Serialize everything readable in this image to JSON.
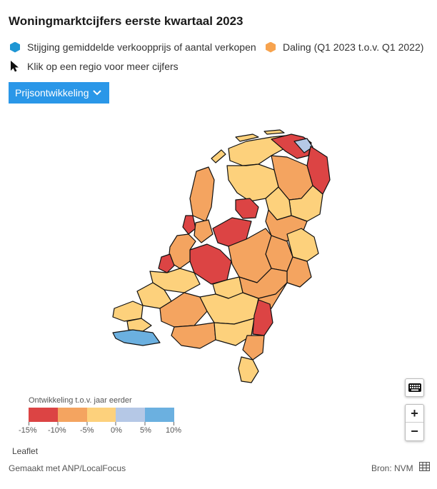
{
  "title": "Woningmarktcijfers eerste kwartaal 2023",
  "legend": {
    "increase_label": "Stijging gemiddelde verkoopprijs of aantal verkopen",
    "decrease_label": "Daling (Q1 2023 t.o.v. Q1 2022)",
    "click_hint": "Klik op een regio voor meer cijfers",
    "increase_color": "#1e96d4",
    "decrease_color": "#f7a34e"
  },
  "dropdown": {
    "label": "Prijsontwikkeling"
  },
  "scale": {
    "title": "Ontwikkeling t.o.v. jaar eerder",
    "colors": [
      "#dc4444",
      "#f4a460",
      "#fdd17c",
      "#b5c8e6",
      "#6bb0e0"
    ],
    "labels": [
      "-15%",
      "-10%",
      "-5%",
      "0%",
      "5%",
      "10%"
    ]
  },
  "map": {
    "border_color": "#111111",
    "categories": {
      "strong_decline": "#dc4444",
      "decline": "#f4a460",
      "slight_decline": "#fdd17c",
      "slight_increase": "#b5c8e6",
      "increase": "#6bb0e0"
    }
  },
  "controls": {
    "keyboard_icon": "keyboard-icon",
    "zoom_in": "+",
    "zoom_out": "−",
    "table_icon": "table-icon"
  },
  "attribution": "Leaflet",
  "footer": {
    "made_with": "Gemaakt met ANP/LocalFocus",
    "source": "Bron: NVM"
  }
}
